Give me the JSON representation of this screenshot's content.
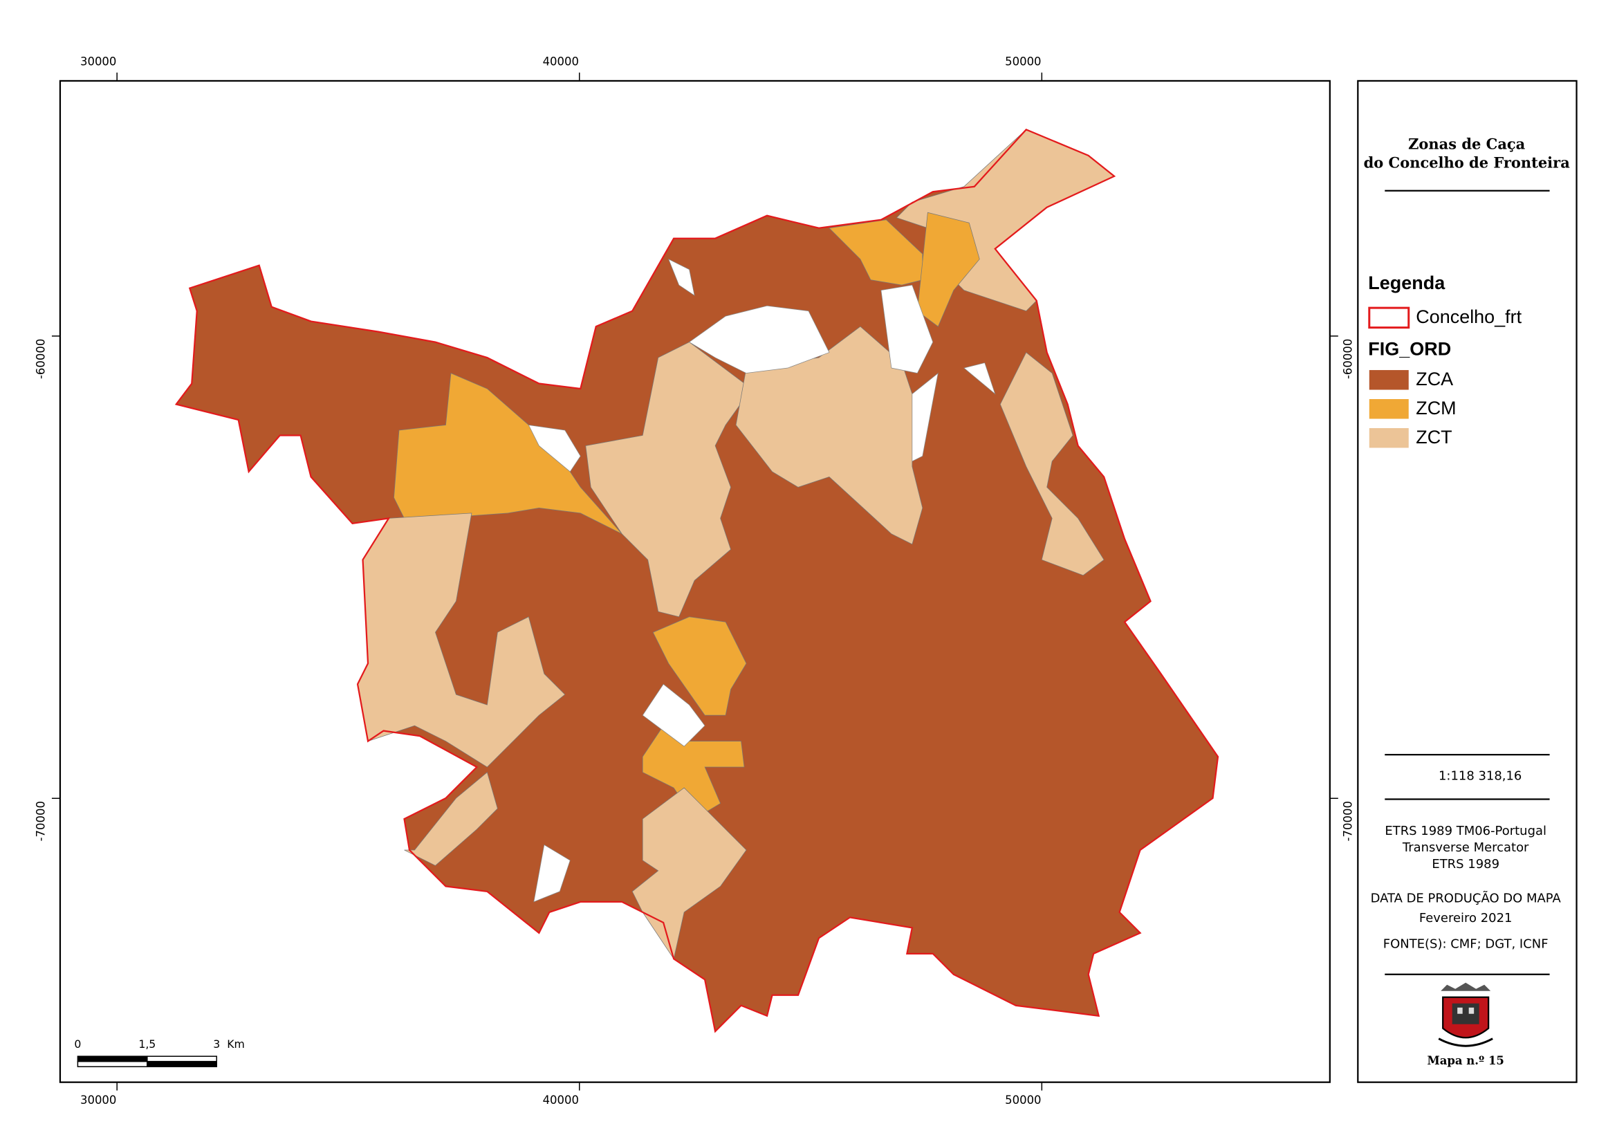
{
  "map": {
    "title": [
      "Zonas de Caça",
      "do Concelho de Fronteira"
    ],
    "xlim": [
      28770,
      56230
    ],
    "ylim": [
      -76140,
      -54480
    ],
    "xticks": [
      30000,
      40000,
      50000
    ],
    "yticks": [
      -60000,
      -70000
    ],
    "legend": {
      "title": "Legenda",
      "boundary": {
        "name": "Concelho_frt",
        "color": "#e31a1c"
      },
      "field": "FIG_ORD",
      "classes": [
        {
          "name": "ZCA",
          "color": "#b5562a"
        },
        {
          "name": "ZCM",
          "color": "#f0a835"
        },
        {
          "name": "ZCT",
          "color": "#ecc497"
        }
      ]
    },
    "scale_bar": {
      "labels": [
        "0",
        "1,5",
        "3",
        "Km"
      ]
    },
    "scale": "1:118 318,16",
    "projection": [
      "ETRS 1989 TM06-Portugal",
      "Transverse Mercator",
      "ETRS 1989"
    ],
    "date_label": "DATA DE PRODUÇÃO DO MAPA",
    "date": "Fevereiro 2021",
    "sources": "FONTE(S): CMF; DGT, ICNF",
    "map_number": "Mapa n.º 15"
  }
}
